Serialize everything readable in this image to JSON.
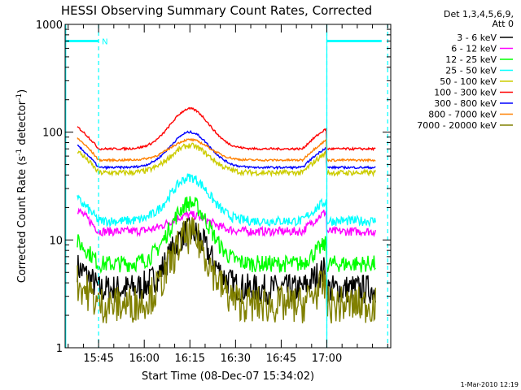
{
  "chart_data": {
    "type": "line",
    "title": "HESSI Observing Summary Count Rates, Corrected",
    "xlabel": "Start Time (08-Dec-07 15:34:02)",
    "ylabel_main": "Corrected Count Rate (s",
    "ylabel_sup1": "-1",
    "ylabel_mid": " detector",
    "ylabel_sup2": "-1",
    "ylabel_end": ")",
    "x_range_minutes": [
      0,
      107
    ],
    "x_ticks": [
      {
        "minute": 11,
        "label": "15:45"
      },
      {
        "minute": 26,
        "label": "16:00"
      },
      {
        "minute": 41,
        "label": "16:15"
      },
      {
        "minute": 56,
        "label": "16:30"
      },
      {
        "minute": 71,
        "label": "16:45"
      },
      {
        "minute": 86,
        "label": "17:00"
      }
    ],
    "y_scale": "log",
    "ylim": [
      1,
      1000
    ],
    "y_tick_labels": [
      "1",
      "10",
      "100",
      "1000"
    ],
    "legend_header": [
      "Det 1,3,4,5,6,9,",
      "Att 0"
    ],
    "legend_placement": "right",
    "series": [
      {
        "name": "3 - 6 keV",
        "color": "#000000",
        "base": 3.5,
        "peak": 12
      },
      {
        "name": "6 - 12 keV",
        "color": "#ff00ff",
        "base": 12,
        "peak": 17
      },
      {
        "name": "12 - 25 keV",
        "color": "#00ff00",
        "base": 6,
        "peak": 22
      },
      {
        "name": "25 - 50 keV",
        "color": "#00ffff",
        "base": 15,
        "peak": 38
      },
      {
        "name": "50 - 100 keV",
        "color": "#cccc00",
        "base": 42,
        "peak": 75
      },
      {
        "name": "100 - 300 keV",
        "color": "#ff0000",
        "base": 70,
        "peak": 165
      },
      {
        "name": "300 - 800 keV",
        "color": "#0000ff",
        "base": 47,
        "peak": 100
      },
      {
        "name": "800 - 7000 keV",
        "color": "#ff8000",
        "base": 55,
        "peak": 85
      },
      {
        "name": "7000 - 20000 keV",
        "color": "#808000",
        "base": 2.5,
        "peak": 11
      }
    ],
    "night_markers_minutes": [
      11,
      86
    ],
    "saa_bar_marker": "N",
    "footer_date": "1-Mar-2010 12:19"
  }
}
